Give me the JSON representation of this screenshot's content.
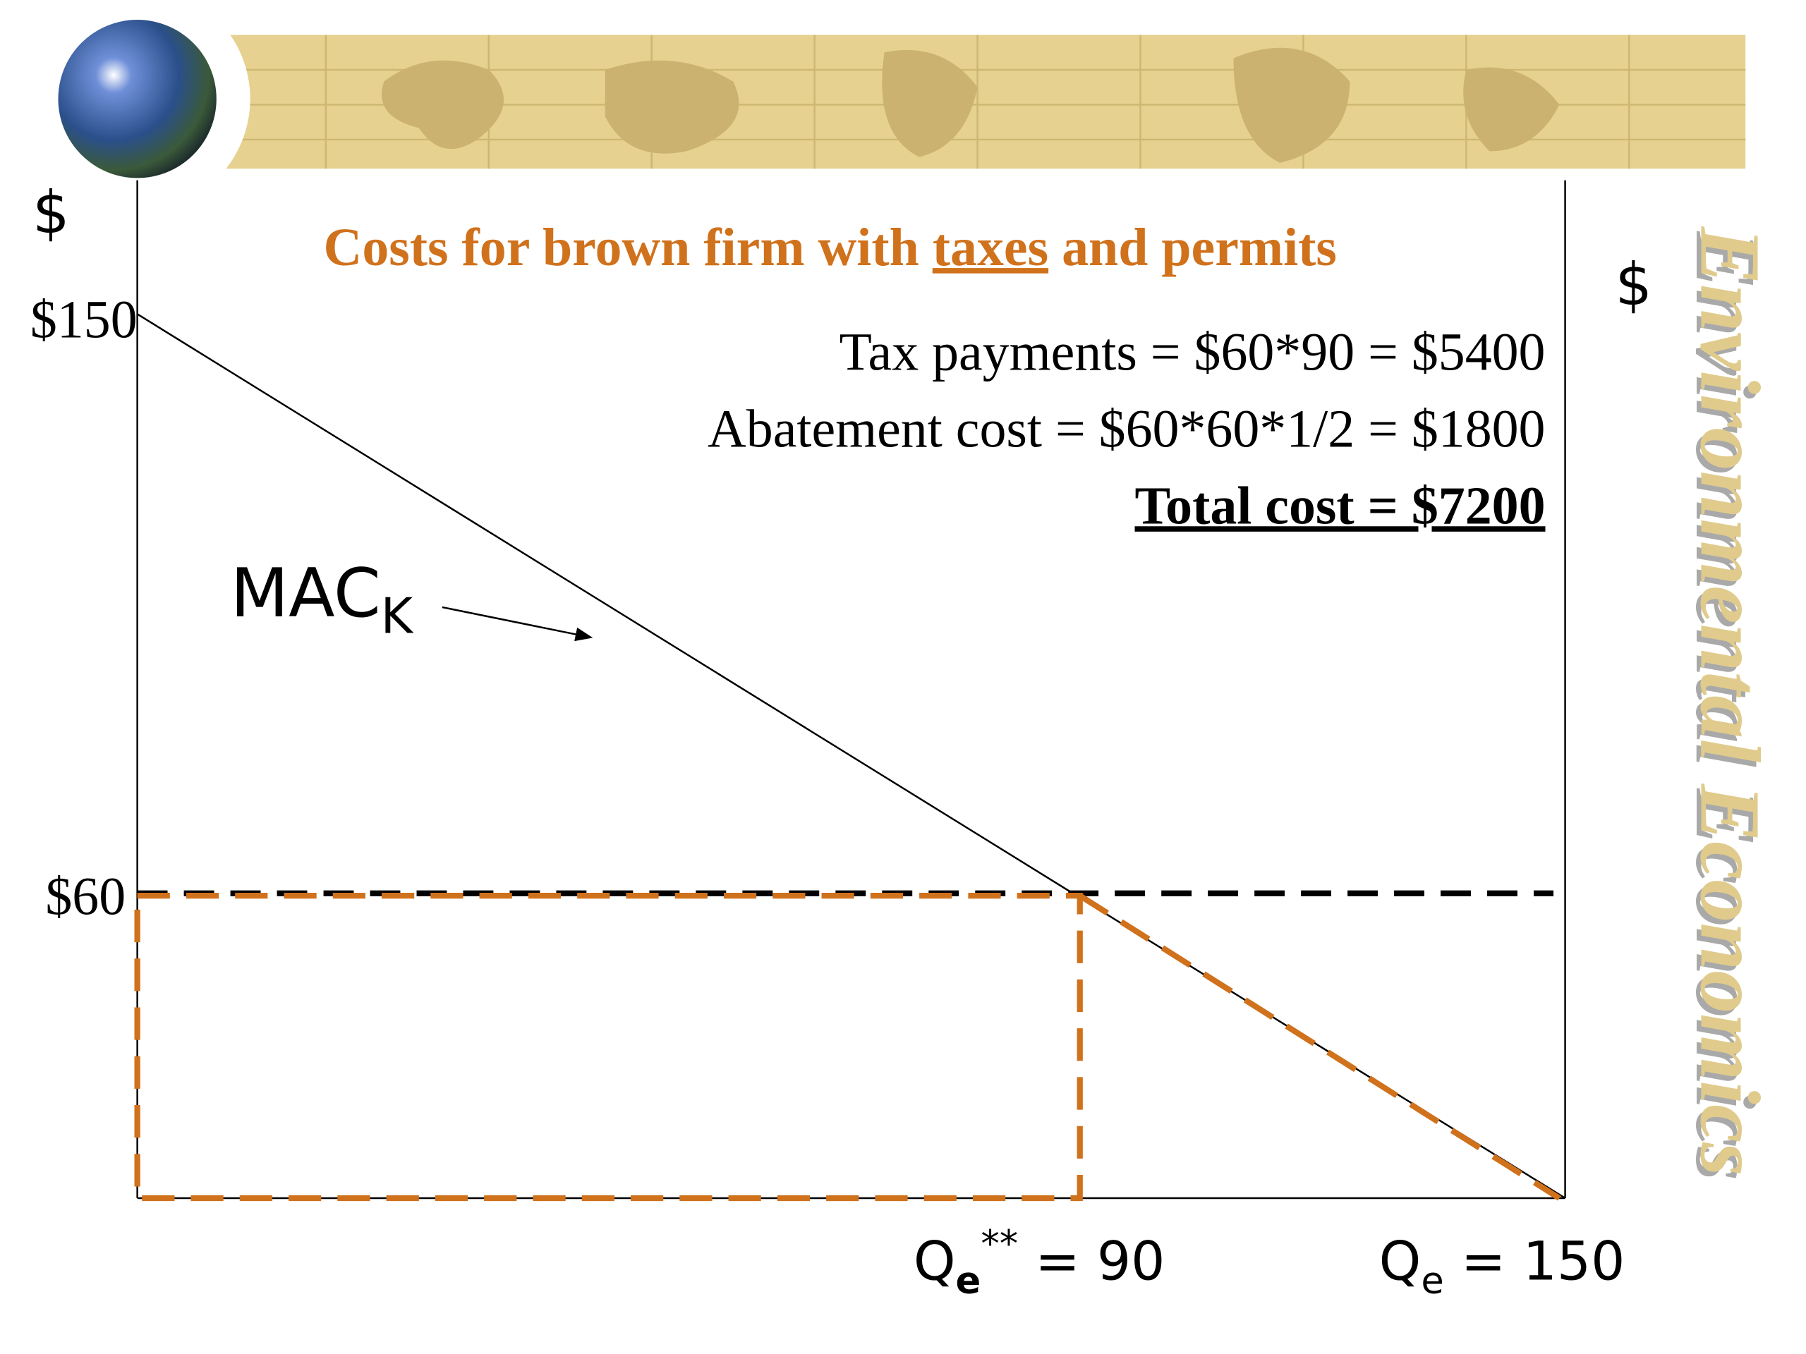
{
  "title": {
    "before": "Costs for brown firm with ",
    "underlined": "taxes",
    "after": " and permits"
  },
  "side_title": "Environmental Economics",
  "axes": {
    "left_label": "$",
    "right_label": "$",
    "y_labels": [
      "$150",
      "$60"
    ]
  },
  "curve_label": {
    "main": "MAC",
    "subscript": "K"
  },
  "x_labels": [
    {
      "main": "Q",
      "subscript": "e",
      "superscript": "**",
      "rest": " = 90"
    },
    {
      "main": "Q",
      "subscript": "e",
      "rest": " = 150"
    }
  ],
  "calculations": [
    "Tax payments = $60*90 = $5400",
    "Abatement cost = $60*60*1/2 = $1800",
    "Total cost = $7200"
  ]
}
